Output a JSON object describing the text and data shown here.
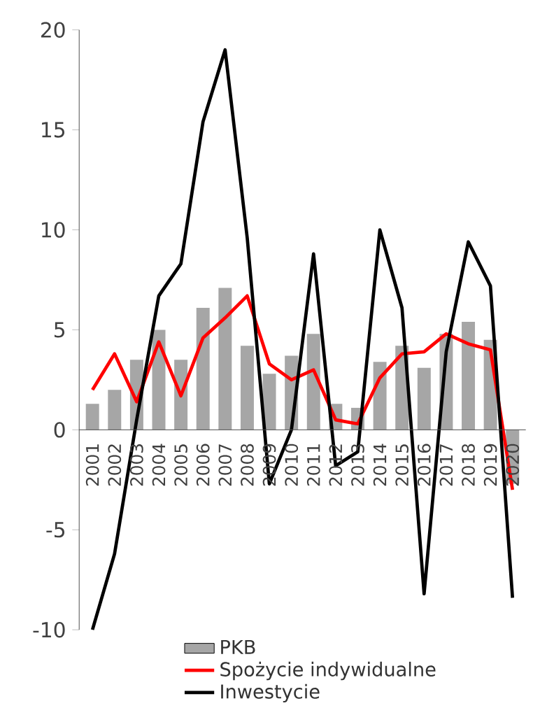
{
  "chart_data": {
    "type": "bar",
    "categories": [
      "2001",
      "2002",
      "2003",
      "2004",
      "2005",
      "2006",
      "2007",
      "2008",
      "2009",
      "2010",
      "2011",
      "2012",
      "2013",
      "2014",
      "2015",
      "2016",
      "2017",
      "2018",
      "2019",
      "2020"
    ],
    "series": [
      {
        "name": "PKB",
        "color": "#a6a6a6",
        "values": [
          1.3,
          2.0,
          3.5,
          5.0,
          3.5,
          6.1,
          7.1,
          4.2,
          2.8,
          3.7,
          4.8,
          1.3,
          1.1,
          3.4,
          4.2,
          3.1,
          4.8,
          5.4,
          4.5,
          -2.7
        ]
      },
      {
        "name": "Spożycie indywidualne",
        "type": "line",
        "color": "#ff0000",
        "values": [
          2.0,
          3.8,
          1.4,
          4.4,
          1.7,
          4.6,
          5.6,
          6.7,
          3.3,
          2.5,
          3.0,
          0.5,
          0.3,
          2.6,
          3.8,
          3.9,
          4.8,
          4.3,
          4.0,
          -3.0
        ]
      },
      {
        "name": "Inwestycie",
        "type": "line",
        "color": "#000000",
        "values": [
          -10.0,
          -6.2,
          0.5,
          6.7,
          8.3,
          15.4,
          19.0,
          9.6,
          -2.7,
          0.0,
          8.8,
          -1.8,
          -1.1,
          10.0,
          6.1,
          -8.2,
          3.9,
          9.4,
          7.2,
          -8.4
        ]
      }
    ],
    "ylim": [
      -10,
      20
    ],
    "yticks": [
      -10,
      -5,
      0,
      5,
      10,
      15,
      20
    ],
    "legend": "bottom"
  }
}
